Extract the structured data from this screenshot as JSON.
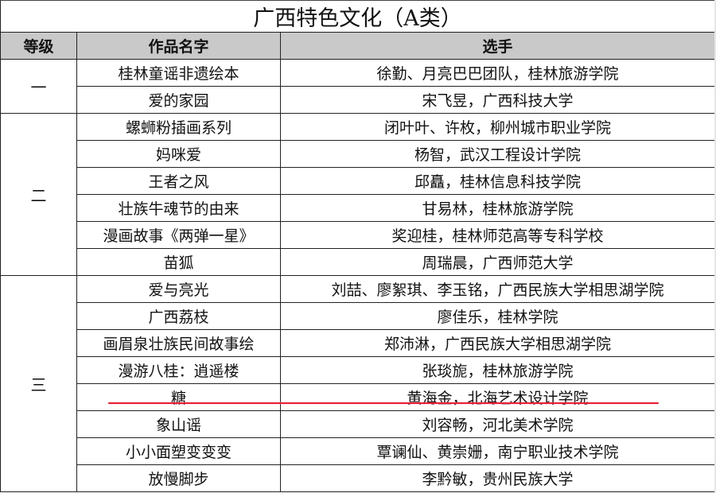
{
  "title": "广西特色文化（A类）",
  "headers": {
    "level": "等级",
    "work": "作品名字",
    "players": "选手"
  },
  "groups": [
    {
      "level": "一",
      "rows": [
        {
          "work": "桂林童谣非遗绘本",
          "players": "徐勤、月亮巴巴团队，桂林旅游学院"
        },
        {
          "work": "爱的家园",
          "players": "宋飞昱，广西科技大学"
        }
      ]
    },
    {
      "level": "二",
      "rows": [
        {
          "work": "螺蛳粉插画系列",
          "players": "闭叶叶、许枚，柳州城市职业学院"
        },
        {
          "work": "妈咪爱",
          "players": "杨智，武汉工程设计学院"
        },
        {
          "work": "王者之风",
          "players": "邱矗，桂林信息科技学院"
        },
        {
          "work": "壮族牛魂节的由来",
          "players": "甘易林，桂林旅游学院"
        },
        {
          "work": "漫画故事《两弹一星》",
          "players": "奖迎桂，桂林师范高等专科学校"
        },
        {
          "work": "苗狐",
          "players": "周瑞晨，广西师范大学"
        }
      ]
    },
    {
      "level": "三",
      "rows": [
        {
          "work": "爱与亮光",
          "players": "刘喆、廖絮琪、李玉铭，广西民族大学相思湖学院"
        },
        {
          "work": "广西荔枝",
          "players": "廖佳乐，桂林学院"
        },
        {
          "work": "画眉泉壮族民间故事绘",
          "players": "郑沛淋，广西民族大学相思湖学院"
        },
        {
          "work": "漫游八桂：逍遥楼",
          "players": "张琰旎，桂林旅游学院"
        },
        {
          "work": "糖",
          "players": "黄海金，北海艺术设计学院"
        },
        {
          "work": "象山谣",
          "players": "刘容畅，河北美术学院"
        },
        {
          "work": "小小面塑变变变",
          "players": "覃谰仙、黄崇姗，南宁职业技术学院"
        },
        {
          "work": "放慢脚步",
          "players": "李黔敏，贵州民族大学"
        }
      ]
    }
  ],
  "highlight_color": "#e8203a"
}
